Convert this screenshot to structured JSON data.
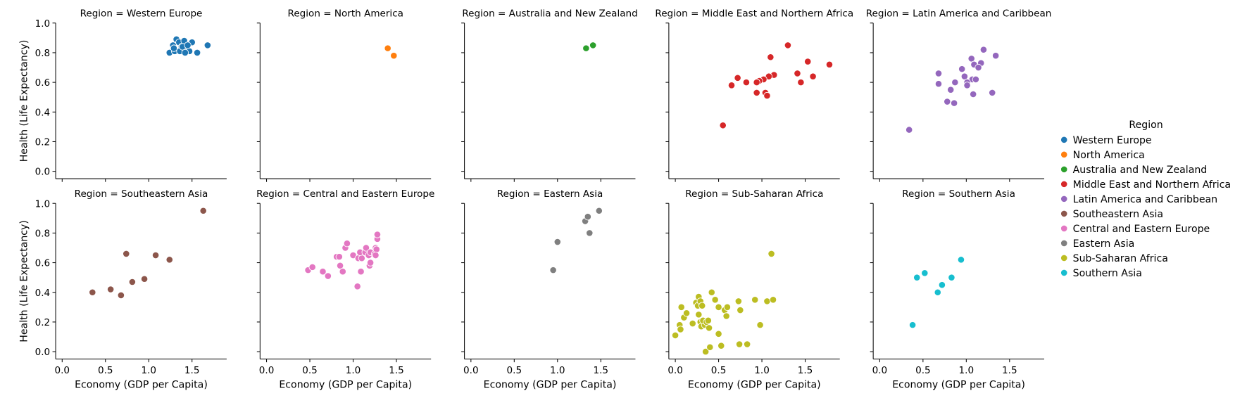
{
  "chart_data": {
    "type": "scatter",
    "facet_grid": {
      "rows": 2,
      "cols": 5
    },
    "xlabel": "Economy (GDP per Capita)",
    "ylabel": "Health (Life Expectancy)",
    "xlim": [
      -0.075,
      1.9
    ],
    "ylim": [
      -0.05,
      1.0
    ],
    "xticks": [
      "0.0",
      "0.5",
      "1.0",
      "1.5"
    ],
    "xtick_values": [
      0,
      0.5,
      1.0,
      1.5
    ],
    "yticks": [
      "0.0",
      "0.2",
      "0.4",
      "0.6",
      "0.8",
      "1.0"
    ],
    "ytick_values": [
      0,
      0.2,
      0.4,
      0.6,
      0.8,
      1.0
    ],
    "grid": false,
    "legend": {
      "title": "Region",
      "placement": "right"
    },
    "panels": [
      {
        "title": "Region = Western Europe",
        "name": "Western Europe",
        "color": "#1f77b4",
        "points": [
          [
            1.24,
            0.8
          ],
          [
            1.28,
            0.85
          ],
          [
            1.32,
            0.89
          ],
          [
            1.35,
            0.87
          ],
          [
            1.38,
            0.84
          ],
          [
            1.41,
            0.88
          ],
          [
            1.43,
            0.82
          ],
          [
            1.47,
            0.81
          ],
          [
            1.5,
            0.87
          ],
          [
            1.56,
            0.8
          ],
          [
            1.68,
            0.85
          ],
          [
            1.3,
            0.81
          ],
          [
            1.36,
            0.81
          ],
          [
            1.39,
            0.84
          ],
          [
            1.45,
            0.85
          ],
          [
            1.29,
            0.83
          ],
          [
            1.42,
            0.8
          ]
        ]
      },
      {
        "title": "Region = North America",
        "name": "North America",
        "color": "#ff7f0e",
        "points": [
          [
            1.4,
            0.83
          ],
          [
            1.47,
            0.78
          ]
        ]
      },
      {
        "title": "Region = Australia and New Zealand",
        "name": "Australia and New Zealand",
        "color": "#2ca02c",
        "points": [
          [
            1.33,
            0.83
          ],
          [
            1.41,
            0.85
          ]
        ]
      },
      {
        "title": "Region = Middle East and Northern Africa",
        "name": "Middle East and Northern Africa",
        "color": "#d62728",
        "points": [
          [
            1.3,
            0.85
          ],
          [
            1.1,
            0.77
          ],
          [
            1.53,
            0.74
          ],
          [
            1.78,
            0.72
          ],
          [
            1.59,
            0.64
          ],
          [
            1.14,
            0.65
          ],
          [
            1.08,
            0.64
          ],
          [
            1.02,
            0.62
          ],
          [
            0.97,
            0.61
          ],
          [
            0.94,
            0.6
          ],
          [
            0.82,
            0.6
          ],
          [
            0.72,
            0.63
          ],
          [
            0.65,
            0.58
          ],
          [
            1.41,
            0.66
          ],
          [
            1.45,
            0.6
          ],
          [
            0.94,
            0.53
          ],
          [
            1.04,
            0.53
          ],
          [
            1.06,
            0.51
          ],
          [
            0.55,
            0.31
          ]
        ]
      },
      {
        "title": "Region = Latin America and Caribbean",
        "name": "Latin America and Caribbean",
        "color": "#9467bd",
        "points": [
          [
            1.2,
            0.82
          ],
          [
            1.34,
            0.78
          ],
          [
            1.06,
            0.76
          ],
          [
            1.09,
            0.72
          ],
          [
            1.17,
            0.73
          ],
          [
            1.14,
            0.7
          ],
          [
            0.95,
            0.69
          ],
          [
            0.68,
            0.66
          ],
          [
            0.98,
            0.64
          ],
          [
            1.07,
            0.62
          ],
          [
            1.11,
            0.62
          ],
          [
            1.01,
            0.6
          ],
          [
            1.01,
            0.58
          ],
          [
            0.68,
            0.59
          ],
          [
            0.87,
            0.6
          ],
          [
            0.82,
            0.55
          ],
          [
            1.3,
            0.53
          ],
          [
            1.08,
            0.52
          ],
          [
            0.78,
            0.47
          ],
          [
            0.86,
            0.46
          ],
          [
            0.34,
            0.28
          ]
        ]
      },
      {
        "title": "Region = Southeastern Asia",
        "name": "Southeastern Asia",
        "color": "#8c564b",
        "points": [
          [
            1.63,
            0.95
          ],
          [
            0.74,
            0.66
          ],
          [
            1.08,
            0.65
          ],
          [
            1.24,
            0.62
          ],
          [
            0.95,
            0.49
          ],
          [
            0.81,
            0.47
          ],
          [
            0.56,
            0.42
          ],
          [
            0.35,
            0.4
          ],
          [
            0.68,
            0.38
          ]
        ]
      },
      {
        "title": "Region = Central and Eastern Europe",
        "name": "Central and Eastern Europe",
        "color": "#e377c2",
        "points": [
          [
            0.48,
            0.55
          ],
          [
            0.53,
            0.57
          ],
          [
            0.65,
            0.54
          ],
          [
            0.71,
            0.51
          ],
          [
            0.81,
            0.64
          ],
          [
            0.84,
            0.64
          ],
          [
            0.85,
            0.58
          ],
          [
            0.88,
            0.54
          ],
          [
            0.91,
            0.7
          ],
          [
            0.93,
            0.73
          ],
          [
            1.0,
            0.65
          ],
          [
            1.06,
            0.63
          ],
          [
            1.1,
            0.63
          ],
          [
            1.05,
            0.44
          ],
          [
            1.09,
            0.54
          ],
          [
            1.08,
            0.67
          ],
          [
            1.14,
            0.67
          ],
          [
            1.15,
            0.7
          ],
          [
            1.18,
            0.65
          ],
          [
            1.19,
            0.58
          ],
          [
            1.2,
            0.6
          ],
          [
            1.2,
            0.67
          ],
          [
            1.25,
            0.66
          ],
          [
            1.26,
            0.7
          ],
          [
            1.27,
            0.69
          ],
          [
            1.26,
            0.65
          ],
          [
            1.28,
            0.76
          ],
          [
            1.28,
            0.79
          ]
        ]
      },
      {
        "title": "Region = Eastern Asia",
        "name": "Eastern Asia",
        "color": "#7f7f7f",
        "points": [
          [
            0.95,
            0.55
          ],
          [
            1.0,
            0.74
          ],
          [
            1.32,
            0.88
          ],
          [
            1.35,
            0.91
          ],
          [
            1.37,
            0.8
          ],
          [
            1.48,
            0.95
          ]
        ]
      },
      {
        "title": "Region = Sub-Saharan Africa",
        "name": "Sub-Saharan Africa",
        "color": "#bcbd22",
        "points": [
          [
            0.0,
            0.11
          ],
          [
            0.05,
            0.18
          ],
          [
            0.06,
            0.15
          ],
          [
            0.07,
            0.3
          ],
          [
            0.1,
            0.23
          ],
          [
            0.13,
            0.26
          ],
          [
            0.2,
            0.19
          ],
          [
            0.24,
            0.33
          ],
          [
            0.26,
            0.31
          ],
          [
            0.27,
            0.37
          ],
          [
            0.29,
            0.34
          ],
          [
            0.27,
            0.25
          ],
          [
            0.29,
            0.2
          ],
          [
            0.31,
            0.31
          ],
          [
            0.3,
            0.17
          ],
          [
            0.34,
            0.18
          ],
          [
            0.32,
            0.21
          ],
          [
            0.36,
            0.2
          ],
          [
            0.35,
            0.0
          ],
          [
            0.38,
            0.21
          ],
          [
            0.39,
            0.16
          ],
          [
            0.42,
            0.4
          ],
          [
            0.46,
            0.35
          ],
          [
            0.4,
            0.03
          ],
          [
            0.5,
            0.3
          ],
          [
            0.5,
            0.12
          ],
          [
            0.53,
            0.04
          ],
          [
            0.57,
            0.28
          ],
          [
            0.6,
            0.3
          ],
          [
            0.59,
            0.24
          ],
          [
            0.73,
            0.34
          ],
          [
            0.74,
            0.05
          ],
          [
            0.75,
            0.28
          ],
          [
            0.83,
            0.05
          ],
          [
            0.92,
            0.35
          ],
          [
            0.98,
            0.18
          ],
          [
            1.06,
            0.34
          ],
          [
            1.11,
            0.66
          ],
          [
            1.13,
            0.35
          ]
        ]
      },
      {
        "title": "Region = Southern Asia",
        "name": "Southern Asia",
        "color": "#17becf",
        "points": [
          [
            0.38,
            0.18
          ],
          [
            0.43,
            0.5
          ],
          [
            0.52,
            0.53
          ],
          [
            0.67,
            0.4
          ],
          [
            0.72,
            0.45
          ],
          [
            0.83,
            0.5
          ],
          [
            0.94,
            0.62
          ]
        ]
      }
    ]
  }
}
